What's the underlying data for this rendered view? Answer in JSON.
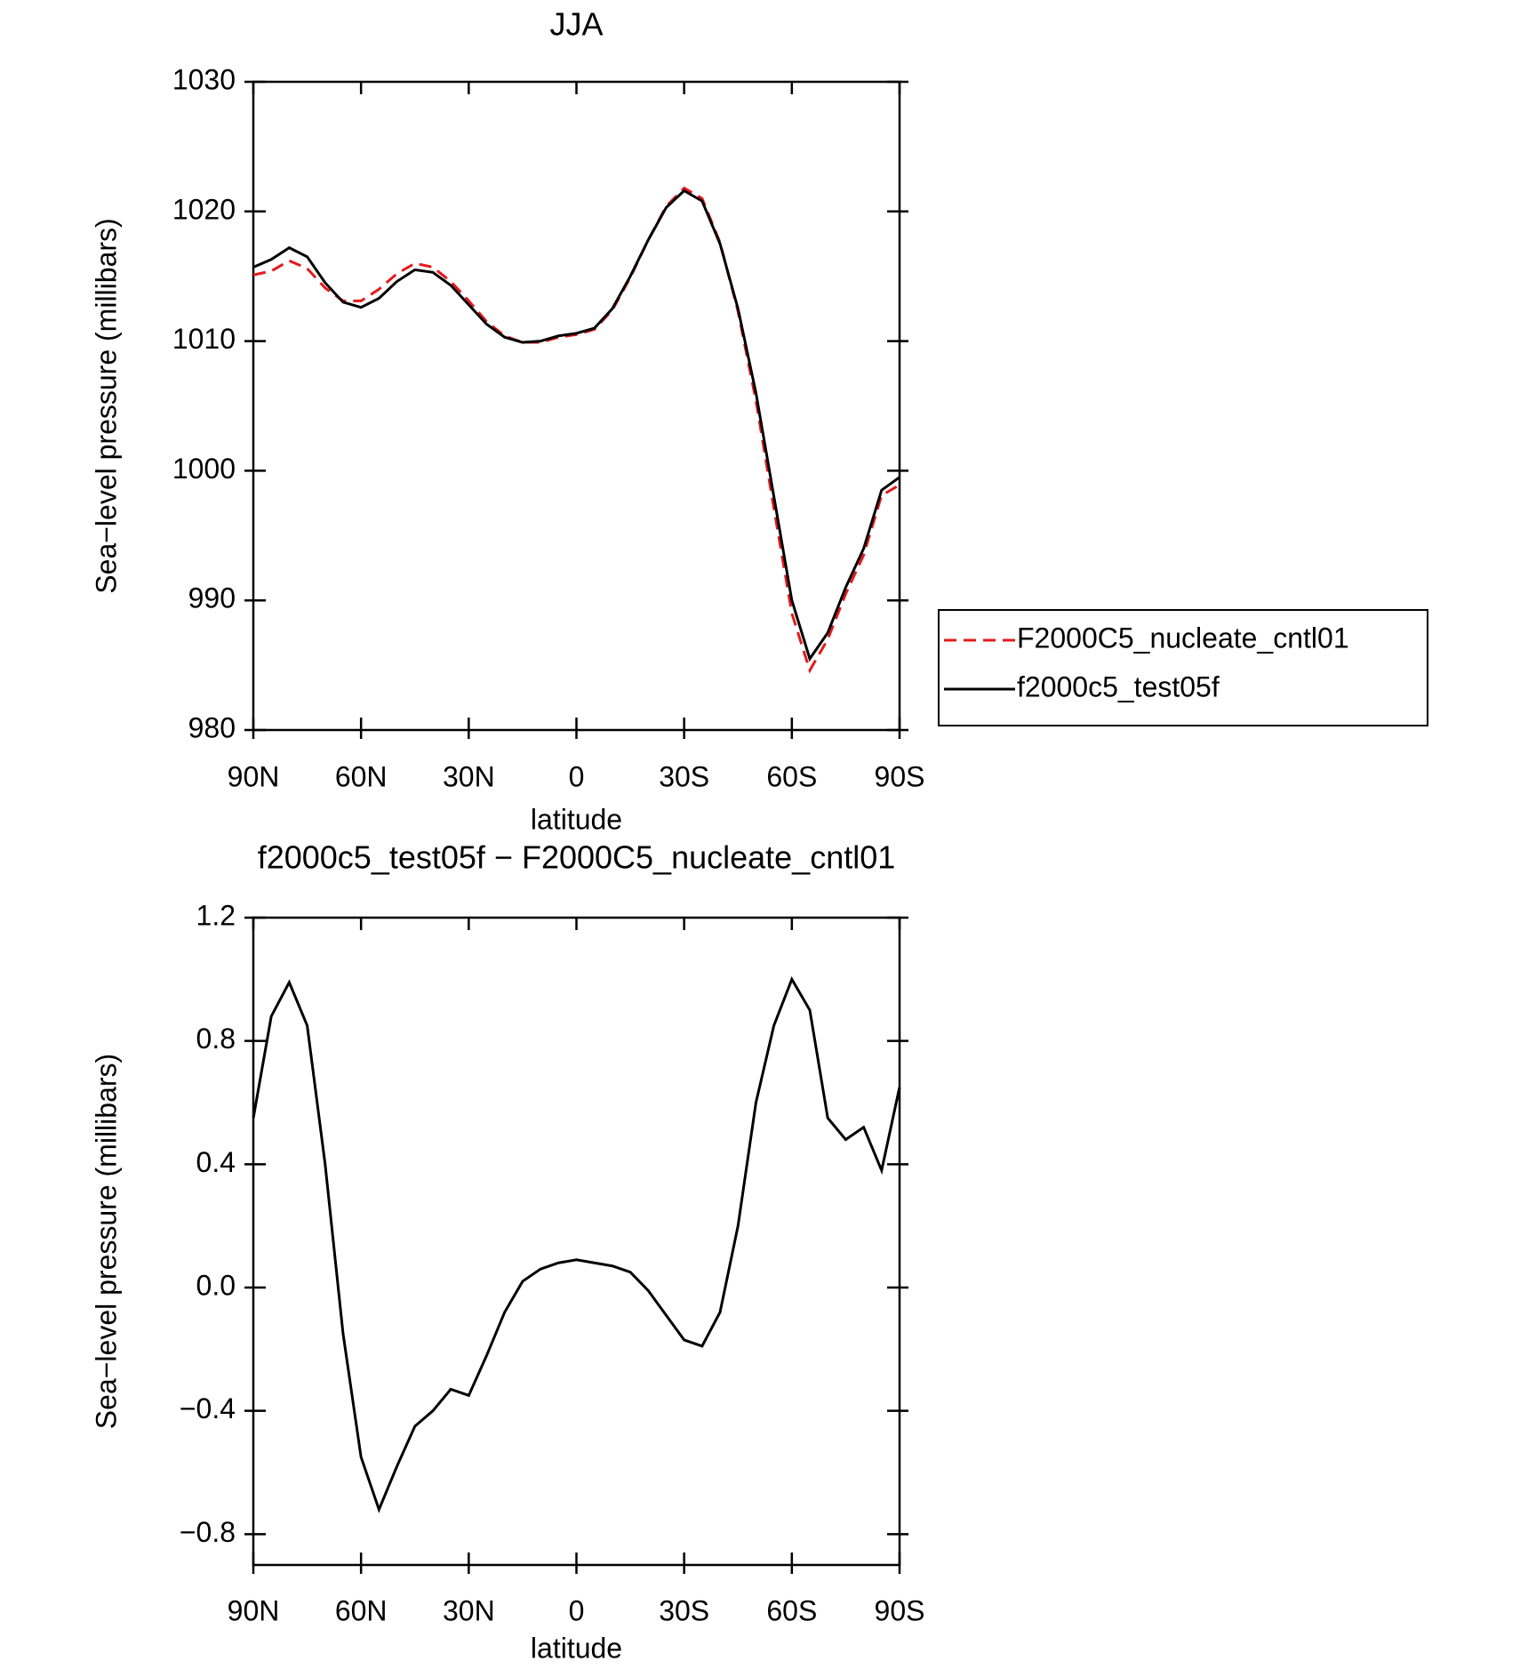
{
  "chart_data": [
    {
      "type": "line",
      "title": "JJA",
      "ylabel": "Sea−level pressure (millibars)",
      "xlabel": "latitude",
      "x": [
        90,
        85,
        80,
        75,
        70,
        65,
        60,
        55,
        50,
        45,
        40,
        35,
        30,
        25,
        20,
        15,
        10,
        5,
        0,
        -5,
        -10,
        -15,
        -20,
        -25,
        -30,
        -35,
        -40,
        -45,
        -50,
        -55,
        -60,
        -65,
        -70,
        -75,
        -80,
        -85,
        -90
      ],
      "xlim": [
        90,
        -90
      ],
      "xticks": [
        {
          "value": 90,
          "label": "90N"
        },
        {
          "value": 60,
          "label": "60N"
        },
        {
          "value": 30,
          "label": "30N"
        },
        0,
        {
          "value": -30,
          "label": "30S"
        },
        {
          "value": -60,
          "label": "60S"
        },
        {
          "value": -90,
          "label": "90S"
        }
      ],
      "ylim": [
        980,
        1030
      ],
      "yticks": [
        980,
        990,
        1000,
        1010,
        1020,
        1030
      ],
      "legend": "right",
      "series": [
        {
          "name": "F2000C5_nucleate_cntl01",
          "color": "#e41a1c",
          "linestyle": "dashed",
          "values": [
            1015.1,
            1015.4,
            1016.2,
            1015.6,
            1014.1,
            1013.1,
            1013.1,
            1014.0,
            1015.2,
            1016.0,
            1015.7,
            1014.6,
            1013.1,
            1011.5,
            1010.4,
            1009.9,
            1009.9,
            1010.3,
            1010.5,
            1010.9,
            1012.4,
            1014.9,
            1017.8,
            1020.4,
            1021.8,
            1021.0,
            1017.6,
            1012.3,
            1005.4,
            997.1,
            989.0,
            984.6,
            987.0,
            990.5,
            993.5,
            998.1,
            998.9
          ]
        },
        {
          "name": "f2000c5_test05f",
          "color": "#000000",
          "linestyle": "solid",
          "values": [
            1015.7,
            1016.3,
            1017.2,
            1016.5,
            1014.5,
            1013.0,
            1012.6,
            1013.3,
            1014.6,
            1015.5,
            1015.3,
            1014.3,
            1012.8,
            1011.3,
            1010.3,
            1009.9,
            1010.0,
            1010.4,
            1010.6,
            1011.0,
            1012.5,
            1015.0,
            1017.8,
            1020.3,
            1021.6,
            1020.8,
            1017.5,
            1012.5,
            1006.0,
            998.0,
            990.0,
            985.5,
            987.5,
            991.0,
            994.0,
            998.5,
            999.5
          ]
        }
      ]
    },
    {
      "type": "line",
      "title": "f2000c5_test05f − F2000C5_nucleate_cntl01",
      "ylabel": "Sea−level pressure (millibars)",
      "xlabel": "latitude",
      "x": [
        90,
        85,
        80,
        75,
        70,
        65,
        60,
        55,
        50,
        45,
        40,
        35,
        30,
        25,
        20,
        15,
        10,
        5,
        0,
        -5,
        -10,
        -15,
        -20,
        -25,
        -30,
        -35,
        -40,
        -45,
        -50,
        -55,
        -60,
        -65,
        -70,
        -75,
        -80,
        -85,
        -90
      ],
      "xlim": [
        90,
        -90
      ],
      "xticks": [
        {
          "value": 90,
          "label": "90N"
        },
        {
          "value": 60,
          "label": "60N"
        },
        {
          "value": 30,
          "label": "30N"
        },
        0,
        {
          "value": -30,
          "label": "30S"
        },
        {
          "value": -60,
          "label": "60S"
        },
        {
          "value": -90,
          "label": "90S"
        }
      ],
      "ylim": [
        -0.9,
        1.2
      ],
      "yticks": [
        {
          "value": -0.8,
          "label": "−0.8"
        },
        {
          "value": -0.4,
          "label": "−0.4"
        },
        {
          "value": 0,
          "label": "0.0"
        },
        0.4,
        0.8,
        1.2
      ],
      "color": "#000000",
      "values": [
        0.55,
        0.88,
        0.99,
        0.85,
        0.4,
        -0.15,
        -0.55,
        -0.72,
        -0.58,
        -0.45,
        -0.4,
        -0.33,
        -0.35,
        -0.22,
        -0.08,
        0.02,
        0.06,
        0.08,
        0.09,
        0.08,
        0.07,
        0.05,
        -0.01,
        -0.09,
        -0.17,
        -0.19,
        -0.08,
        0.2,
        0.6,
        0.85,
        1.0,
        0.9,
        0.55,
        0.48,
        0.52,
        0.38,
        0.65
      ]
    }
  ]
}
